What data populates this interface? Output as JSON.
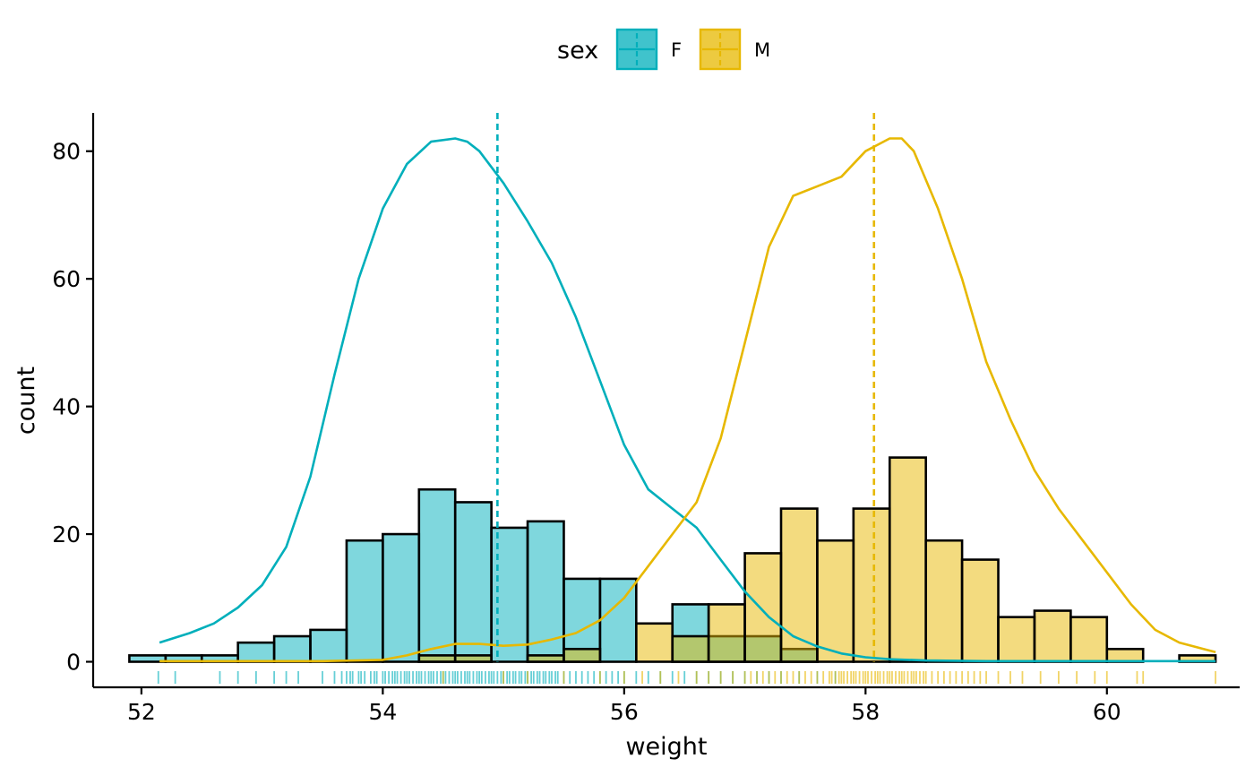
{
  "chart_data": {
    "type": "bar",
    "subtype": "histogram with density overlay, mean lines and rug",
    "xlabel": "weight",
    "ylabel": "count",
    "xlim": [
      51.6,
      61.1
    ],
    "ylim": [
      -4,
      86
    ],
    "x_ticks": [
      52,
      54,
      56,
      58,
      60
    ],
    "y_ticks": [
      0,
      20,
      40,
      60,
      80
    ],
    "grid": false,
    "legend": {
      "title": "sex",
      "placement": "top",
      "entries": [
        "F",
        "M"
      ]
    },
    "bin_width": 0.3,
    "bin_starts": [
      51.9,
      52.2,
      52.5,
      52.8,
      53.1,
      53.4,
      53.7,
      54.0,
      54.3,
      54.6,
      54.9,
      55.2,
      55.5,
      55.8,
      56.1,
      56.4,
      56.7,
      57.0,
      57.3,
      57.6,
      57.9,
      58.2,
      58.5,
      58.8,
      59.1,
      59.4,
      59.7,
      60.0,
      60.3,
      60.6
    ],
    "series": [
      {
        "name": "F",
        "color": "#00AFBB",
        "counts": [
          1,
          1,
          1,
          3,
          4,
          5,
          19,
          20,
          27,
          25,
          21,
          22,
          13,
          13,
          0,
          9,
          4,
          4,
          2,
          0,
          0,
          0,
          0,
          0,
          0,
          0,
          0,
          0,
          0,
          0
        ],
        "mean": 54.95,
        "density": {
          "x": [
            52.15,
            52.4,
            52.6,
            52.8,
            53.0,
            53.2,
            53.4,
            53.6,
            53.8,
            54.0,
            54.2,
            54.4,
            54.6,
            54.7,
            54.8,
            55.0,
            55.2,
            55.4,
            55.6,
            55.8,
            56.0,
            56.2,
            56.4,
            56.6,
            56.8,
            57.0,
            57.2,
            57.4,
            57.6,
            57.8,
            58.0,
            58.2,
            58.5,
            59.0,
            59.5,
            60.0,
            60.5,
            60.9
          ],
          "y": [
            3,
            4.5,
            6,
            8.5,
            12,
            18,
            29,
            45,
            60,
            71,
            78,
            81.5,
            82,
            81.5,
            80,
            75,
            69,
            62.5,
            54,
            44,
            34,
            27,
            24,
            21,
            16,
            11,
            7,
            4,
            2.4,
            1.3,
            0.7,
            0.4,
            0.2,
            0.1,
            0.1,
            0.1,
            0.1,
            0.1
          ]
        },
        "rug": [
          52.14,
          52.28,
          52.65,
          52.8,
          52.95,
          53.1,
          53.2,
          53.3,
          53.5,
          53.6,
          53.66,
          53.7,
          53.73,
          53.75,
          53.8,
          53.82,
          53.85,
          53.9,
          53.93,
          53.95,
          54.0,
          54.02,
          54.05,
          54.08,
          54.1,
          54.12,
          54.15,
          54.18,
          54.2,
          54.22,
          54.25,
          54.28,
          54.3,
          54.32,
          54.35,
          54.38,
          54.4,
          54.42,
          54.45,
          54.48,
          54.5,
          54.52,
          54.55,
          54.58,
          54.6,
          54.62,
          54.65,
          54.68,
          54.7,
          54.72,
          54.75,
          54.78,
          54.8,
          54.82,
          54.85,
          54.88,
          54.9,
          54.92,
          54.95,
          54.98,
          55.0,
          55.03,
          55.05,
          55.08,
          55.1,
          55.13,
          55.15,
          55.18,
          55.2,
          55.23,
          55.25,
          55.28,
          55.3,
          55.33,
          55.35,
          55.38,
          55.4,
          55.43,
          55.45,
          55.5,
          55.55,
          55.6,
          55.65,
          55.7,
          55.75,
          55.8,
          55.85,
          55.9,
          55.95,
          56.0,
          56.1,
          56.2,
          56.3,
          56.4,
          56.5,
          56.6,
          56.7,
          56.8,
          56.9,
          57.0,
          57.1,
          57.2,
          57.3,
          57.45,
          57.6,
          57.75
        ]
      },
      {
        "name": "M",
        "color": "#E7B800",
        "counts": [
          0,
          0,
          0,
          0,
          0,
          0,
          0,
          0,
          1,
          1,
          0,
          1,
          2,
          0,
          6,
          4,
          9,
          17,
          24,
          19,
          24,
          32,
          19,
          16,
          7,
          8,
          7,
          2,
          0,
          1
        ],
        "mean": 58.07,
        "density": {
          "x": [
            52.15,
            52.5,
            53.0,
            53.5,
            54.0,
            54.2,
            54.4,
            54.6,
            54.8,
            55.0,
            55.2,
            55.4,
            55.6,
            55.8,
            56.0,
            56.2,
            56.4,
            56.6,
            56.8,
            57.0,
            57.2,
            57.4,
            57.6,
            57.8,
            58.0,
            58.1,
            58.2,
            58.3,
            58.4,
            58.6,
            58.8,
            59.0,
            59.2,
            59.4,
            59.6,
            59.8,
            60.0,
            60.2,
            60.4,
            60.6,
            60.8,
            60.9
          ],
          "y": [
            0.1,
            0.1,
            0.1,
            0.1,
            0.3,
            1.0,
            2.0,
            2.8,
            2.8,
            2.5,
            2.7,
            3.5,
            4.5,
            6.5,
            10,
            15,
            20,
            25,
            35,
            50,
            65,
            73,
            74.5,
            76,
            80,
            81,
            82,
            82,
            80,
            71,
            60,
            47,
            38,
            30,
            24,
            19,
            14,
            9,
            5,
            3,
            2,
            1.5
          ]
        },
        "rug": [
          54.5,
          55.0,
          55.2,
          55.5,
          55.8,
          56.0,
          56.15,
          56.3,
          56.45,
          56.6,
          56.7,
          56.8,
          56.9,
          57.0,
          57.05,
          57.1,
          57.15,
          57.2,
          57.25,
          57.3,
          57.35,
          57.4,
          57.45,
          57.5,
          57.55,
          57.6,
          57.65,
          57.7,
          57.72,
          57.75,
          57.78,
          57.8,
          57.82,
          57.85,
          57.88,
          57.9,
          57.92,
          57.95,
          57.98,
          58.0,
          58.02,
          58.05,
          58.08,
          58.1,
          58.12,
          58.15,
          58.18,
          58.2,
          58.22,
          58.25,
          58.28,
          58.3,
          58.32,
          58.35,
          58.38,
          58.4,
          58.42,
          58.45,
          58.48,
          58.5,
          58.55,
          58.6,
          58.65,
          58.7,
          58.75,
          58.8,
          58.85,
          58.9,
          58.95,
          59.0,
          59.1,
          59.2,
          59.3,
          59.45,
          59.6,
          59.75,
          59.9,
          60.0,
          60.25,
          60.3,
          60.9
        ]
      }
    ]
  }
}
